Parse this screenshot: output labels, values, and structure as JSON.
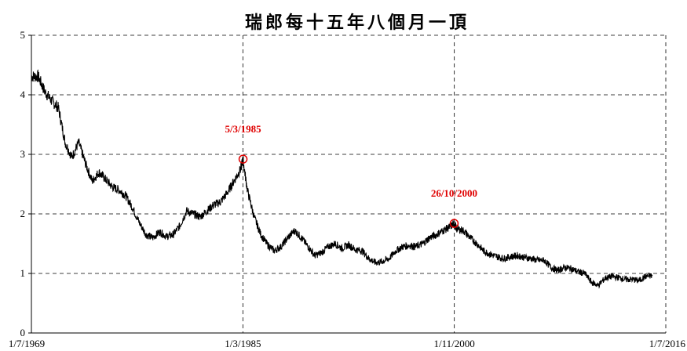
{
  "chart_data": {
    "type": "line",
    "title": "瑞郎每十五年八個月一頂",
    "xlabel": "",
    "ylabel": "",
    "xlim": [
      "1/7/1969",
      "1/7/2016"
    ],
    "ylim": [
      0,
      5
    ],
    "x_ticks": [
      "1/7/1969",
      "1/3/1985",
      "1/11/2000",
      "1/7/2016"
    ],
    "y_ticks": [
      "0",
      "1",
      "2",
      "3",
      "4",
      "5"
    ],
    "grid": true,
    "series": [
      {
        "x": [
          1969.5,
          1970.0,
          1970.5,
          1971.0,
          1971.5,
          1972.0,
          1972.5,
          1973.0,
          1973.5,
          1974.0,
          1974.5,
          1975.0,
          1975.5,
          1976.0,
          1976.5,
          1977.0,
          1977.5,
          1978.0,
          1978.5,
          1979.0,
          1979.5,
          1980.0,
          1980.5,
          1981.0,
          1981.5,
          1982.0,
          1982.5,
          1983.0,
          1983.5,
          1984.0,
          1984.5,
          1985.0,
          1985.17,
          1985.5,
          1986.0,
          1986.5,
          1987.0,
          1987.5,
          1988.0,
          1988.5,
          1989.0,
          1989.5,
          1990.0,
          1990.5,
          1991.0,
          1991.5,
          1992.0,
          1992.5,
          1993.0,
          1993.5,
          1994.0,
          1994.5,
          1995.0,
          1995.5,
          1996.0,
          1996.5,
          1997.0,
          1997.5,
          1998.0,
          1998.5,
          1999.0,
          1999.5,
          2000.0,
          2000.5,
          2000.82,
          2001.0,
          2001.5,
          2002.0,
          2002.5,
          2003.0,
          2003.5,
          2004.0,
          2004.5,
          2005.0,
          2005.5,
          2006.0,
          2006.5,
          2007.0,
          2007.5,
          2008.0,
          2008.5,
          2009.0,
          2009.5,
          2010.0,
          2010.5,
          2011.0,
          2011.5,
          2012.0,
          2012.5,
          2013.0,
          2013.5,
          2014.0,
          2014.5,
          2015.0,
          2015.5
        ],
        "y": [
          4.31,
          4.31,
          4.05,
          3.9,
          3.78,
          3.2,
          2.95,
          3.2,
          2.85,
          2.55,
          2.7,
          2.58,
          2.45,
          2.4,
          2.3,
          2.1,
          1.85,
          1.65,
          1.6,
          1.7,
          1.62,
          1.65,
          1.8,
          2.05,
          2.0,
          1.95,
          2.05,
          2.15,
          2.2,
          2.35,
          2.55,
          2.75,
          2.92,
          2.4,
          1.95,
          1.65,
          1.48,
          1.38,
          1.45,
          1.6,
          1.72,
          1.6,
          1.45,
          1.3,
          1.35,
          1.45,
          1.5,
          1.42,
          1.48,
          1.4,
          1.38,
          1.25,
          1.18,
          1.2,
          1.25,
          1.38,
          1.45,
          1.47,
          1.45,
          1.5,
          1.6,
          1.65,
          1.72,
          1.78,
          1.84,
          1.75,
          1.72,
          1.6,
          1.5,
          1.38,
          1.32,
          1.28,
          1.25,
          1.28,
          1.3,
          1.27,
          1.25,
          1.22,
          1.22,
          1.1,
          1.05,
          1.1,
          1.08,
          1.03,
          1.0,
          0.85,
          0.8,
          0.92,
          0.95,
          0.93,
          0.9,
          0.9,
          0.88,
          0.95,
          0.96
        ]
      }
    ],
    "annotations": [
      {
        "label": "5/3/1985",
        "x": 1985.18,
        "y": 2.92
      },
      {
        "label": "26/10/2000",
        "x": 2000.82,
        "y": 1.84
      }
    ]
  }
}
